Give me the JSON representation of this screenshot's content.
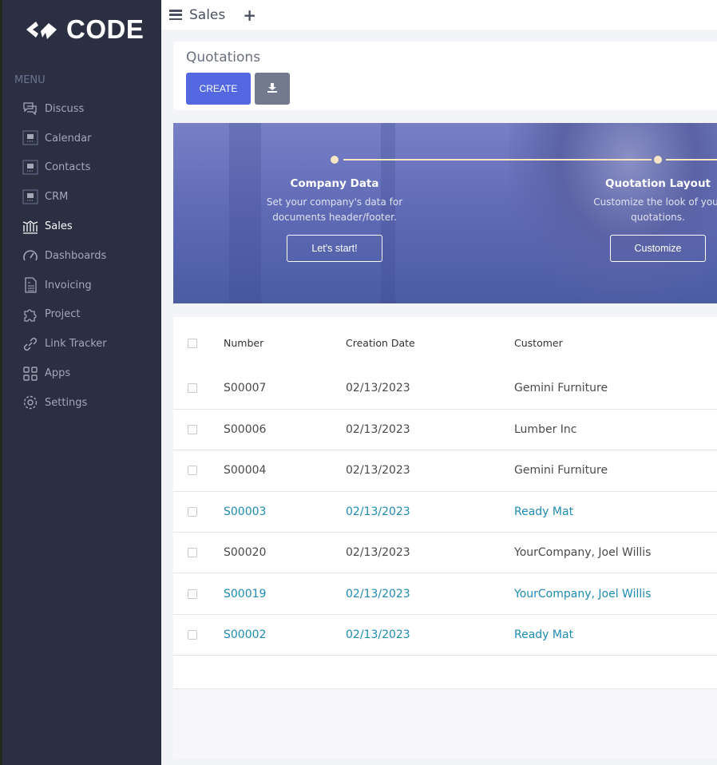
{
  "sidebar": {
    "logo": "CODE",
    "menu_heading": "MENU",
    "items": [
      {
        "label": "Discuss",
        "icon": "chat-icon"
      },
      {
        "label": "Calendar",
        "icon": "app-placeholder-icon"
      },
      {
        "label": "Contacts",
        "icon": "app-placeholder-icon"
      },
      {
        "label": "CRM",
        "icon": "app-placeholder-icon"
      },
      {
        "label": "Sales",
        "icon": "bank-chart-icon",
        "active": true
      },
      {
        "label": "Dashboards",
        "icon": "speedometer-icon"
      },
      {
        "label": "Invoicing",
        "icon": "invoice-icon"
      },
      {
        "label": "Project",
        "icon": "puzzle-icon"
      },
      {
        "label": "Link Tracker",
        "icon": "link-icon"
      },
      {
        "label": "Apps",
        "icon": "grid-icon"
      },
      {
        "label": "Settings",
        "icon": "gear-icon"
      }
    ]
  },
  "topbar": {
    "title": "Sales",
    "add": "+"
  },
  "page": {
    "title": "Quotations",
    "create_label": "CREATE"
  },
  "banner": {
    "steps": [
      {
        "title": "Company Data",
        "desc1": "Set your company's data for",
        "desc2": "documents header/footer.",
        "button": "Let's start!"
      },
      {
        "title": "Quotation Layout",
        "desc1": "Customize the look of your",
        "desc2": "quotations.",
        "button": "Customize"
      }
    ]
  },
  "table": {
    "headers": [
      "Number",
      "Creation Date",
      "Customer"
    ],
    "rows": [
      [
        "S00007",
        "02/13/2023",
        "Gemini Furniture"
      ],
      [
        "S00006",
        "02/13/2023",
        "Lumber Inc"
      ],
      [
        "S00004",
        "02/13/2023",
        "Gemini Furniture"
      ],
      [
        "S00003",
        "02/13/2023",
        "Ready Mat"
      ],
      [
        "S00020",
        "02/13/2023",
        "YourCompany, Joel Willis"
      ],
      [
        "S00019",
        "02/13/2023",
        "YourCompany, Joel Willis"
      ],
      [
        "S00002",
        "02/13/2023",
        "Ready Mat"
      ]
    ],
    "highlighted_rows": [
      3,
      5,
      6
    ]
  },
  "colors": {
    "sidebar": "#2a2f42",
    "accent": "#5468e1",
    "link": "#1f8bb0"
  }
}
